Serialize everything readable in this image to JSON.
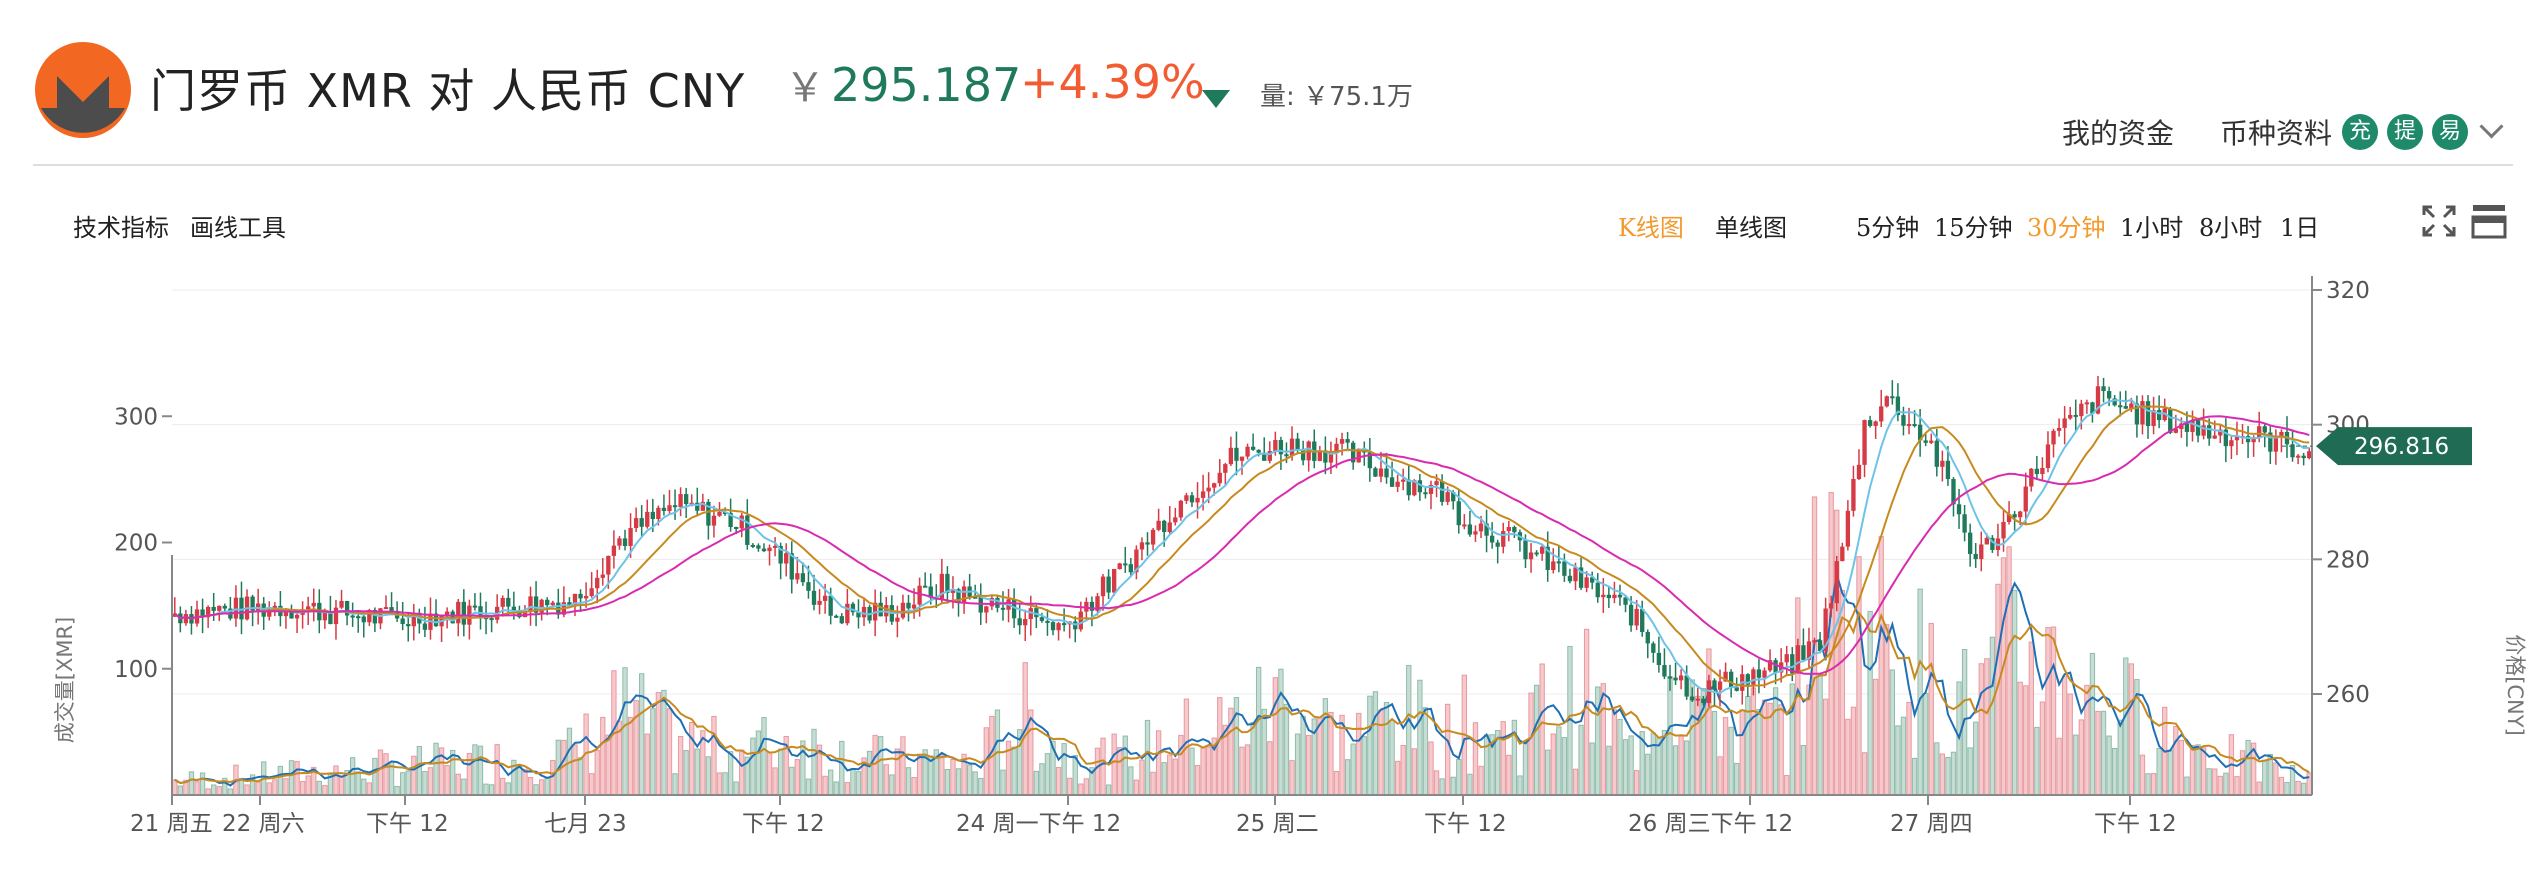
{
  "header": {
    "title": "门罗币 XMR 对 人民币 CNY",
    "price_symbol": "￥",
    "price": "295.187",
    "change": "+4.39%",
    "volume_label": "量:",
    "volume_value": "￥75.1万",
    "my_funds": "我的资金",
    "coin_info": "币种资料",
    "badge_charge": "充",
    "badge_withdraw": "提",
    "badge_trade": "易",
    "logo_icon": "monero-logo-icon"
  },
  "toolbar": {
    "tech_indicators": "技术指标",
    "draw_tools": "画线工具",
    "kline": "K线图",
    "line": "单线图",
    "intervals": [
      "5分钟",
      "15分钟",
      "30分钟",
      "1小时",
      "8小时",
      "1日"
    ],
    "active_interval": "30分钟",
    "fullscreen_icon": "fullscreen-icon",
    "settings_icon": "layout-icon"
  },
  "colors": {
    "up": "#d63a45",
    "down": "#1f7a5c",
    "accent": "#f39a2d",
    "price_tag": "#1f6b53",
    "ma_blue": "#6ec3e8",
    "ma_orange": "#c88a1e",
    "ma_magenta": "#d92bb0"
  },
  "chart_data": {
    "type": "candlestick",
    "price_axis": {
      "ticks": [
        320,
        300,
        280,
        260
      ],
      "range": [
        245,
        320
      ],
      "label": "价格[CNY]"
    },
    "volume_axis": {
      "ticks": [
        300,
        200,
        100
      ],
      "range": [
        0,
        400
      ],
      "label": "成交量[XMR]"
    },
    "x_ticks": [
      "21 周五",
      "22 周六",
      "下午 12",
      "七月 23",
      "下午 12",
      "24 周一下午 12",
      "25 周二",
      "下午 12",
      "26 周三下午 12",
      "27 周四",
      "下午 12"
    ],
    "last_price_tag": "296.816",
    "grid": true,
    "anchors": [
      [
        0,
        272,
        10
      ],
      [
        20,
        273,
        15
      ],
      [
        40,
        271,
        20
      ],
      [
        60,
        273,
        25
      ],
      [
        72,
        274,
        30
      ],
      [
        80,
        283,
        60
      ],
      [
        90,
        288,
        40
      ],
      [
        100,
        286,
        30
      ],
      [
        112,
        278,
        40
      ],
      [
        118,
        272,
        30
      ],
      [
        128,
        272,
        25
      ],
      [
        138,
        276,
        25
      ],
      [
        144,
        274,
        20
      ],
      [
        152,
        272,
        60
      ],
      [
        160,
        270,
        30
      ],
      [
        170,
        278,
        25
      ],
      [
        180,
        288,
        40
      ],
      [
        190,
        295,
        50
      ],
      [
        200,
        297,
        70
      ],
      [
        210,
        296,
        40
      ],
      [
        220,
        292,
        60
      ],
      [
        228,
        290,
        40
      ],
      [
        232,
        286,
        50
      ],
      [
        240,
        283,
        40
      ],
      [
        246,
        280,
        60
      ],
      [
        254,
        276,
        70
      ],
      [
        262,
        272,
        30
      ],
      [
        268,
        264,
        90
      ],
      [
        274,
        260,
        70
      ],
      [
        280,
        262,
        50
      ],
      [
        290,
        264,
        50
      ],
      [
        296,
        268,
        150
      ],
      [
        300,
        282,
        140
      ],
      [
        304,
        300,
        110
      ],
      [
        308,
        304,
        120
      ],
      [
        316,
        297,
        80
      ],
      [
        324,
        280,
        60
      ],
      [
        330,
        286,
        110
      ],
      [
        338,
        298,
        90
      ],
      [
        346,
        304,
        70
      ],
      [
        356,
        301,
        50
      ],
      [
        366,
        299,
        30
      ],
      [
        376,
        298,
        20
      ],
      [
        384,
        296,
        10
      ]
    ]
  }
}
